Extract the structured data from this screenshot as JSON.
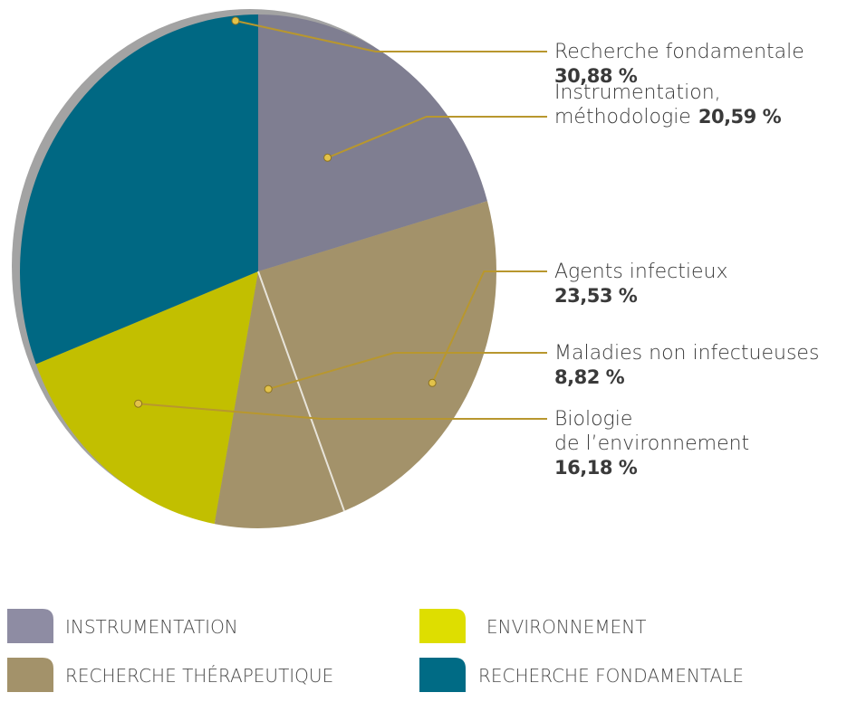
{
  "chart_data": {
    "type": "pie",
    "slices": [
      {
        "category": "Instrumentation",
        "label_lines": [
          "Instrumentation,",
          "méthodologie"
        ],
        "value": 20.59,
        "value_text": "20,59 %",
        "color": "#7f7e91"
      },
      {
        "category": "Recherche thérapeutique",
        "label_lines": [
          "Agents infectieux"
        ],
        "value": 23.53,
        "value_text": "23,53 %",
        "color": "#a3926a"
      },
      {
        "category": "Recherche thérapeutique",
        "label_lines": [
          "Maladies non infectueuses"
        ],
        "value": 8.82,
        "value_text": "8,82 %",
        "color": "#a3926a"
      },
      {
        "category": "Environnement",
        "label_lines": [
          "Biologie",
          "de l’environnement"
        ],
        "value": 16.18,
        "value_text": "16,18 %",
        "color": "#c2bf00"
      },
      {
        "category": "Recherche fondamentale",
        "label_lines": [
          "Recherche fondamentale"
        ],
        "value": 30.88,
        "value_text": "30,88 %",
        "color": "#006883"
      }
    ],
    "legend": [
      {
        "label": "INSTRUMENTATION",
        "color": "#8e8ca3"
      },
      {
        "label": "ENVIRONNEMENT",
        "color": "#dede00"
      },
      {
        "label": "RECHERCHE THÉRAPEUTIQUE",
        "color": "#a3926a"
      },
      {
        "label": "RECHERCHE FONDAMENTALE",
        "color": "#006b85"
      }
    ],
    "colors": {
      "shadow": "#a3a3a3",
      "separator": "#e8e4da",
      "leader": "#b8972e",
      "leader_dot": "#e2c24a"
    }
  }
}
